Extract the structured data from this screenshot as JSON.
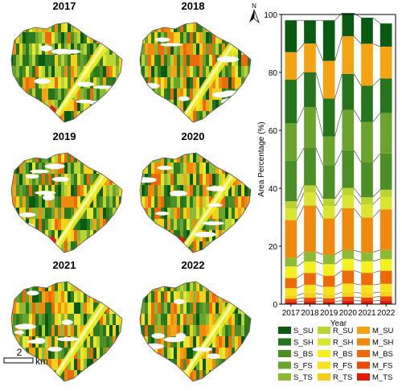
{
  "panels": [
    {
      "label": "2017",
      "seed": 17
    },
    {
      "label": "2018",
      "seed": 18
    },
    {
      "label": "2019",
      "seed": 19
    },
    {
      "label": "2020",
      "seed": 20
    },
    {
      "label": "2021",
      "seed": 21
    },
    {
      "label": "2022",
      "seed": 22
    }
  ],
  "scale": {
    "value": "2",
    "unit": "km"
  },
  "north_label": "N",
  "colors": {
    "S_SU": "#0b5a12",
    "S_SH": "#27741f",
    "S_BS": "#4c8f27",
    "S_FS": "#6aa32d",
    "S_TS": "#8dba34",
    "R_SU": "#bcd431",
    "R_SH": "#d9e531",
    "R_BS": "#f4f01e",
    "R_FS": "#f7e21c",
    "R_TS": "#f6cf1a",
    "M_SU": "#f3a412",
    "M_SH": "#ef8a0e",
    "M_BS": "#ec6a09",
    "M_FS": "#e84b07",
    "M_TS": "#e01e06"
  },
  "chart_data": {
    "type": "bar",
    "stacked": true,
    "categories": [
      "2017",
      "2018",
      "2019",
      "2020",
      "2021",
      "2022"
    ],
    "xlabel": "Year",
    "ylabel": "Area Percentage (%)",
    "ylim": [
      0,
      100
    ],
    "yticks": [
      0,
      20,
      40,
      60,
      80,
      100
    ],
    "legend_position": "bottom",
    "legend_columns": [
      [
        "S_SU",
        "S_SH",
        "S_BS",
        "S_FS",
        "S_TS"
      ],
      [
        "R_SU",
        "R_SH",
        "R_BS",
        "R_FS",
        "R_TS"
      ],
      [
        "M_SU",
        "M_SH",
        "M_BS",
        "M_FS",
        "M_TS"
      ]
    ],
    "series": [
      {
        "name": "M_TS",
        "values": [
          0.8,
          1.0,
          0.9,
          1.2,
          1.1,
          1.3
        ]
      },
      {
        "name": "M_FS",
        "values": [
          1.0,
          1.2,
          1.1,
          1.3,
          1.2,
          1.4
        ]
      },
      {
        "name": "R_TS",
        "values": [
          1.2,
          1.5,
          1.3,
          1.6,
          1.5,
          1.5
        ]
      },
      {
        "name": "R_FS",
        "values": [
          2.5,
          3.0,
          2.7,
          3.0,
          2.8,
          2.8
        ]
      },
      {
        "name": "M_BS",
        "values": [
          3.5,
          4.0,
          3.8,
          4.5,
          4.2,
          4.5
        ]
      },
      {
        "name": "R_BS",
        "values": [
          4.0,
          4.0,
          4.0,
          4.0,
          4.0,
          4.0
        ]
      },
      {
        "name": "S_TS",
        "values": [
          3.0,
          3.3,
          3.3,
          3.0,
          3.1,
          3.2
        ]
      },
      {
        "name": "M_SH",
        "values": [
          13.0,
          16.0,
          12.5,
          14.5,
          12.0,
          14.0
        ]
      },
      {
        "name": "R_SH",
        "values": [
          4.0,
          4.5,
          4.3,
          4.5,
          4.5,
          4.3
        ]
      },
      {
        "name": "R_SU",
        "values": [
          2.5,
          2.5,
          2.5,
          2.5,
          2.5,
          2.5
        ]
      },
      {
        "name": "S_BS",
        "values": [
          14.0,
          13.0,
          11.5,
          13.0,
          12.0,
          12.5
        ]
      },
      {
        "name": "S_FS",
        "values": [
          13.0,
          14.0,
          10.0,
          14.0,
          14.0,
          14.0
        ]
      },
      {
        "name": "S_SH",
        "values": [
          15.0,
          12.0,
          13.1,
          12.4,
          12.5,
          11.9
        ]
      },
      {
        "name": "M_SU",
        "values": [
          9.5,
          10.0,
          13.0,
          13.0,
          14.5,
          11.0
        ]
      },
      {
        "name": "S_SU",
        "values": [
          11.0,
          8.0,
          14.0,
          8.0,
          9.0,
          8.0
        ]
      }
    ]
  }
}
